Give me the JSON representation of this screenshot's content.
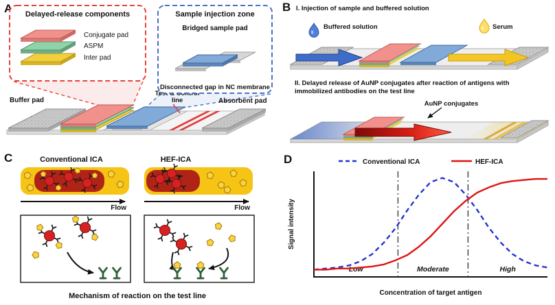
{
  "panels": {
    "a": {
      "label": "A",
      "delayed_box": {
        "title": "Delayed-release components",
        "layers": [
          {
            "name": "Conjugate pad",
            "color": "#f0918c"
          },
          {
            "name": "ASPM",
            "color": "#90d3a8"
          },
          {
            "name": "Inter pad",
            "color": "#f2cf3d"
          }
        ]
      },
      "sample_box": {
        "title": "Sample injection zone",
        "pad_label": "Bridged sample pad",
        "gap_label": "Disconnected gap in NC membrane",
        "pad_color": "#82aad8"
      },
      "strip": {
        "buffer_pad_label": "Buffer pad",
        "test_control_label_line1": "Test & Control",
        "test_control_label_line2": "line",
        "absorbent_pad_label": "Absorbent pad"
      }
    },
    "b": {
      "label": "B",
      "step1": {
        "heading": "I. Injection of sample and buffered solution",
        "buffered_solution_label": "Buffered solution",
        "serum_label": "Serum"
      },
      "step2": {
        "heading_line1": "II. Delayed release of AuNP conjugates after reaction of antigens with",
        "heading_line2": "immobilized antibodies on the test line",
        "aunp_label": "AuNP conjugates"
      }
    },
    "c": {
      "label": "C",
      "left_title": "Conventional ICA",
      "right_title": "HEF-ICA",
      "flow_label": "Flow",
      "caption": "Mechanism of reaction on the test line"
    },
    "d": {
      "label": "D"
    }
  },
  "palette": {
    "aunp_red": "#d62222",
    "antigen_yellow": "#ffd23a",
    "membrane_gray": "#d9d9d9",
    "conventional_ica_blue": "#2233cc",
    "hef_ica_red": "#e01212"
  },
  "chart_data": {
    "type": "line",
    "title": "",
    "xlabel": "Concentration of target antigen",
    "ylabel": "Signal intensity",
    "x_range_normalized": [
      0,
      1
    ],
    "y_range_normalized": [
      0,
      1
    ],
    "grid": false,
    "legend_position": "top",
    "region_dividers_x": [
      0.36,
      0.66
    ],
    "region_labels": [
      "Low",
      "Moderate",
      "High"
    ],
    "x": [
      0,
      0.05,
      0.1,
      0.15,
      0.2,
      0.25,
      0.3,
      0.35,
      0.4,
      0.45,
      0.5,
      0.55,
      0.6,
      0.65,
      0.7,
      0.75,
      0.8,
      0.85,
      0.9,
      0.95,
      1
    ],
    "series": [
      {
        "name": "Conventional ICA",
        "style": "dashed",
        "color": "#2233cc",
        "y": [
          0.07,
          0.08,
          0.09,
          0.11,
          0.15,
          0.22,
          0.33,
          0.47,
          0.64,
          0.79,
          0.91,
          0.95,
          0.91,
          0.79,
          0.64,
          0.47,
          0.33,
          0.22,
          0.15,
          0.11,
          0.09
        ]
      },
      {
        "name": "HEF-ICA",
        "style": "solid",
        "color": "#e01212",
        "y": [
          0.07,
          0.07,
          0.08,
          0.08,
          0.09,
          0.1,
          0.12,
          0.16,
          0.21,
          0.29,
          0.39,
          0.51,
          0.63,
          0.73,
          0.81,
          0.86,
          0.9,
          0.92,
          0.93,
          0.94,
          0.94
        ]
      }
    ]
  }
}
